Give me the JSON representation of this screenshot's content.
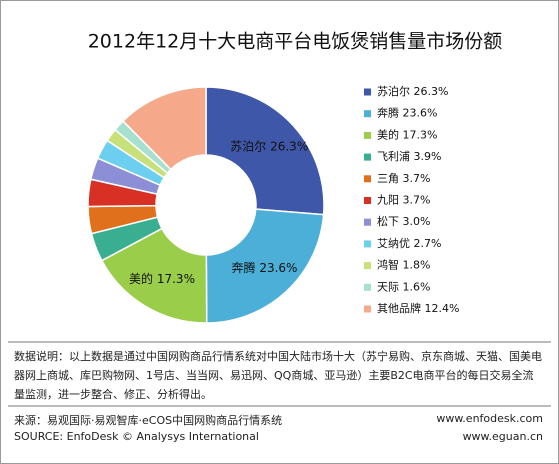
{
  "chart_data": {
    "type": "donut",
    "title": "2012年12月十大电商平台电饭煲销售量市场份额",
    "categories": [
      "苏泊尔",
      "奔腾",
      "美的",
      "飞利浦",
      "三角",
      "九阳",
      "松下",
      "艾纳优",
      "鸿智",
      "天际",
      "其他品牌"
    ],
    "values": [
      26.3,
      23.6,
      17.3,
      3.9,
      3.7,
      3.7,
      3.0,
      2.7,
      1.8,
      1.6,
      12.4
    ],
    "value_labels": [
      "26.3%",
      "23.6%",
      "17.3%",
      "3.9%",
      "3.7%",
      "3.7%",
      "3.0%",
      "2.7%",
      "1.8%",
      "1.6%",
      "12.4%"
    ],
    "colors": [
      "#3f57a8",
      "#4bafd8",
      "#9acd4a",
      "#3aae90",
      "#e0701c",
      "#d93025",
      "#8c8fd6",
      "#6dcff0",
      "#c7e07a",
      "#a8e0d0",
      "#f6a98a"
    ],
    "legend_position": "right"
  },
  "notes": {
    "description": "数据说明：以上数据是通过中国网购商品行情系统对中国大陆市场十大（苏宁易购、京东商城、天猫、国美电器网上商城、库巴购物网、1号店、当当网、易迅网、QQ商城、亚马逊）主要B2C电商平台的每日交易全流量监测，进一步整合、修正、分析得出。",
    "source_cn": "来源：易观国际·易观智库·eCOS中国网购商品行情系统",
    "source_en": "SOURCE: EnfoDesk © Analysys International",
    "website_1": "www.enfodesk.com",
    "website_2": "www.eguan.cn"
  }
}
